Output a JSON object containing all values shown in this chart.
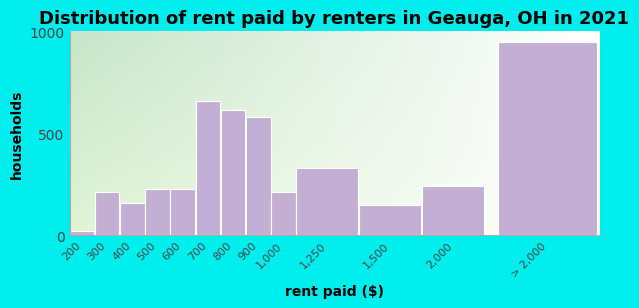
{
  "title": "Distribution of rent paid by renters in Geauga, OH in 2021",
  "xlabel": "rent paid ($)",
  "ylabel": "households",
  "background_color": "#00EEEE",
  "bar_color": "#c4afd4",
  "bar_edge_color": "#ffffff",
  "categories": [
    "200",
    "300",
    "400",
    "500",
    "600",
    "700",
    "800",
    "900",
    "1,000",
    "1,250",
    "1,500",
    "2,000",
    "> 2,000"
  ],
  "values": [
    20,
    210,
    160,
    225,
    225,
    660,
    615,
    580,
    210,
    330,
    150,
    240,
    950
  ],
  "bar_widths": [
    1,
    1,
    1,
    1,
    1,
    1,
    1,
    1,
    1,
    2.5,
    2.5,
    2.5,
    4
  ],
  "bar_lefts": [
    0,
    1,
    2,
    3,
    4,
    5,
    6,
    7,
    8,
    9,
    11.5,
    14,
    17
  ],
  "ylim": [
    0,
    1000
  ],
  "yticks": [
    0,
    500,
    1000
  ],
  "grad_colors": [
    "#c8e6c9",
    "#f1f8e9",
    "#f9fff9",
    "#ffffff"
  ],
  "title_fontsize": 13,
  "label_fontsize": 10,
  "tick_fontsize": 8
}
